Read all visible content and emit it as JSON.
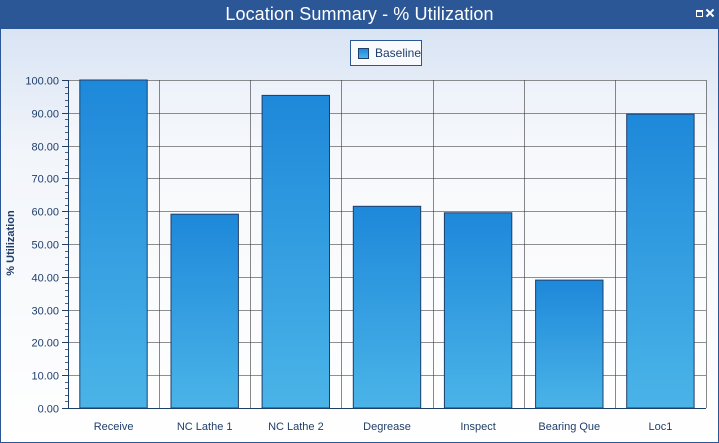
{
  "window": {
    "title": "Location Summary - % Utilization"
  },
  "chart_data": {
    "type": "bar",
    "title": "Location Summary - % Utilization",
    "xlabel": "",
    "ylabel": "% Utilization",
    "categories": [
      "Receive",
      "NC Lathe 1",
      "NC Lathe 2",
      "Degrease",
      "Inspect",
      "Bearing Que",
      "Loc1"
    ],
    "series": [
      {
        "name": "Baseline",
        "values": [
          100.0,
          59.1,
          95.3,
          61.5,
          59.5,
          39.0,
          89.6
        ]
      }
    ],
    "ylim": [
      0,
      100
    ],
    "yticks": [
      "0.00",
      "10.00",
      "20.00",
      "30.00",
      "40.00",
      "50.00",
      "60.00",
      "70.00",
      "80.00",
      "90.00",
      "100.00"
    ],
    "grid": true,
    "legend_position": "top-center",
    "colors": {
      "bar_top": "#1e88da",
      "bar_bottom": "#4ab4e8",
      "bar_stroke": "#1f3e6a",
      "text": "#1f3e6a",
      "grid": "#3a3a3a"
    }
  }
}
